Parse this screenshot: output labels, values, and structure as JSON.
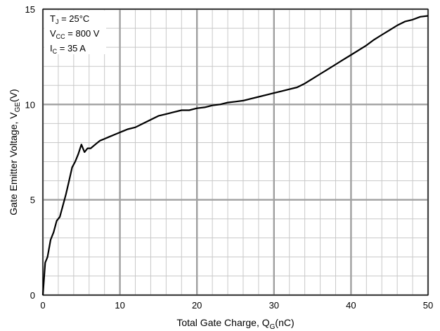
{
  "chart_data": {
    "type": "line",
    "xlabel": {
      "main": "Total Gate Charge, Q",
      "sub": "G",
      "tail": "(nC)"
    },
    "ylabel": {
      "main": "Gate Emitter Voltage, V",
      "sub": "GE",
      "tail": "(V)"
    },
    "xlim": [
      0,
      50
    ],
    "ylim": [
      0,
      15
    ],
    "x_ticks": [
      "0",
      "10",
      "20",
      "30",
      "40",
      "50"
    ],
    "y_ticks": [
      "0",
      "5",
      "10",
      "15"
    ],
    "grid": true,
    "minor_grid": true,
    "annotations": [
      {
        "main": "T",
        "sub": "J",
        "tail": " = 25°C"
      },
      {
        "main": "V",
        "sub": "CC",
        "tail": " = 800 V"
      },
      {
        "main": "I",
        "sub": "C",
        "tail": " = 35 A"
      }
    ],
    "series": [
      {
        "color": "#000000",
        "x": [
          0,
          0.3,
          0.6,
          1.0,
          1.4,
          1.8,
          2.2,
          2.6,
          3.0,
          3.4,
          3.8,
          4.2,
          4.6,
          5.0,
          5.4,
          5.8,
          6.2,
          6.8,
          7.4,
          8.0,
          8.6,
          9.2,
          9.8,
          10.4,
          11.0,
          12.0,
          13.0,
          14.0,
          15.0,
          16.0,
          17.0,
          18.0,
          19.0,
          20.0,
          21.0,
          22.0,
          23.0,
          24.0,
          25.0,
          26.0,
          27.0,
          28.0,
          29.0,
          30.0,
          31.0,
          32.0,
          33.0,
          34.0,
          35.0,
          36.0,
          37.0,
          38.0,
          39.0,
          40.0,
          41.0,
          42.0,
          43.0,
          44.0,
          45.0,
          46.0,
          47.0,
          48.0,
          49.0,
          50.0
        ],
        "y": [
          0,
          1.7,
          2.0,
          2.9,
          3.3,
          3.9,
          4.1,
          4.7,
          5.3,
          6.0,
          6.7,
          7.0,
          7.4,
          7.9,
          7.5,
          7.7,
          7.7,
          7.9,
          8.1,
          8.2,
          8.3,
          8.4,
          8.5,
          8.6,
          8.7,
          8.8,
          9.0,
          9.2,
          9.4,
          9.5,
          9.6,
          9.7,
          9.7,
          9.8,
          9.85,
          9.95,
          10.0,
          10.1,
          10.15,
          10.2,
          10.3,
          10.4,
          10.5,
          10.6,
          10.7,
          10.8,
          10.9,
          11.1,
          11.35,
          11.6,
          11.85,
          12.1,
          12.35,
          12.6,
          12.85,
          13.1,
          13.4,
          13.65,
          13.9,
          14.15,
          14.35,
          14.45,
          14.6,
          14.65
        ]
      }
    ]
  }
}
